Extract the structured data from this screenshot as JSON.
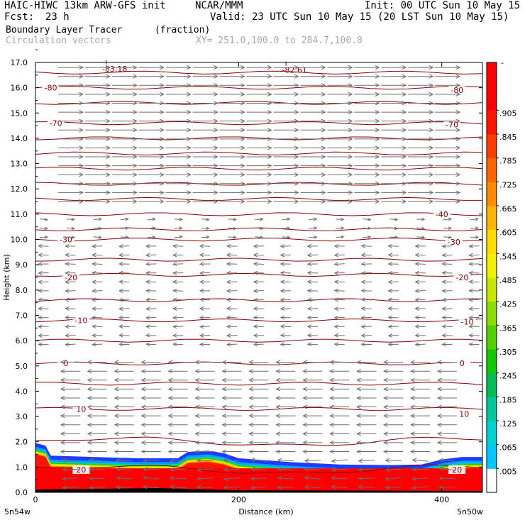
{
  "header": {
    "title": "HAIC-HIWC 13km ARW-GFS init",
    "org": "NCAR/MMM",
    "init": "Init: 00 UTC Sun 10 May 15",
    "fcst_label": "Fcst:",
    "fcst_value": "23 h",
    "valid": "Valid: 23 UTC Sun 10 May 15 (20 LST Sun 10 May 15)",
    "field_name": "Boundary Layer Tracer",
    "field_units": "(fraction)",
    "vector_name": "Circulation vectors",
    "xy_range": "XY= 251.0,100.0 to 284.7,100.0"
  },
  "chart_data": {
    "type": "heatmap",
    "title": "Boundary Layer Tracer (fraction)",
    "xlabel": "Distance (km)",
    "ylabel": "Height (km)",
    "xlim": [
      0,
      440
    ],
    "ylim": [
      0,
      17
    ],
    "x_ticks": [
      "0",
      "200",
      "400"
    ],
    "x_end_labels": [
      "5n54w",
      "5n50w"
    ],
    "y_ticks": [
      "0.0",
      "1.0",
      "2.0",
      "3.0",
      "4.0",
      "5.0",
      "6.0",
      "7.0",
      "8.0",
      "9.0",
      "10.0",
      "11.0",
      "12.0",
      "13.0",
      "14.0",
      "15.0",
      "16.0",
      "17.0"
    ],
    "colorbar": {
      "labels": [
        ".005",
        ".065",
        ".125",
        ".185",
        ".245",
        ".305",
        ".365",
        ".425",
        ".485",
        ".545",
        ".605",
        ".665",
        ".725",
        ".785",
        ".845",
        ".905"
      ],
      "top_label": "-",
      "colors": [
        "#ffffff",
        "#00c8ff",
        "#00d2d2",
        "#00c89b",
        "#00be55",
        "#14c800",
        "#50d200",
        "#8cdc00",
        "#c8e600",
        "#f0f000",
        "#ffdc00",
        "#ffb400",
        "#ff8c00",
        "#ff6400",
        "#ff3c00",
        "#ff1400",
        "#ff0000",
        "#ff0000"
      ]
    },
    "tracer_top_km": [
      [
        0,
        1.95
      ],
      [
        10,
        1.85
      ],
      [
        15,
        1.45
      ],
      [
        40,
        1.42
      ],
      [
        100,
        1.35
      ],
      [
        140,
        1.35
      ],
      [
        150,
        1.6
      ],
      [
        170,
        1.65
      ],
      [
        185,
        1.55
      ],
      [
        200,
        1.35
      ],
      [
        250,
        1.2
      ],
      [
        300,
        1.1
      ],
      [
        350,
        1.08
      ],
      [
        380,
        1.1
      ],
      [
        400,
        1.3
      ],
      [
        420,
        1.4
      ],
      [
        440,
        1.4
      ]
    ],
    "tracer_core_km": 0.95,
    "temperature_contours": [
      {
        "value": "-80",
        "height_km": 16.0
      },
      {
        "value": "-70",
        "height_km": 14.6
      },
      {
        "value": "-40",
        "height_km": 11.0
      },
      {
        "value": "-30",
        "height_km": 10.0
      },
      {
        "value": "-20",
        "height_km": 8.6
      },
      {
        "value": "-10",
        "height_km": 6.8
      },
      {
        "value": "0",
        "height_km": 5.1
      },
      {
        "value": "10",
        "height_km": 3.3
      },
      {
        "value": "20",
        "height_km": 0.9
      }
    ],
    "unlabeled_contour_heights_km": [
      16.6,
      15.4,
      14.0,
      13.4,
      12.8,
      12.2,
      11.6,
      10.4,
      9.2,
      7.6,
      6.0,
      4.3,
      2.0
    ],
    "contour_labels": [
      {
        "value": "-80",
        "x_km": 15,
        "y_km": 16.0
      },
      {
        "value": "-80",
        "x_km": 415,
        "y_km": 15.9
      },
      {
        "value": "-70",
        "x_km": 20,
        "y_km": 14.6
      },
      {
        "value": "-70",
        "x_km": 410,
        "y_km": 14.55
      },
      {
        "value": "-40",
        "x_km": 400,
        "y_km": 11.0
      },
      {
        "value": "-30",
        "x_km": 30,
        "y_km": 10.0
      },
      {
        "value": "-30",
        "x_km": 412,
        "y_km": 9.9
      },
      {
        "value": "-20",
        "x_km": 35,
        "y_km": 8.5
      },
      {
        "value": "-20",
        "x_km": 420,
        "y_km": 8.5
      },
      {
        "value": "-10",
        "x_km": 45,
        "y_km": 6.8
      },
      {
        "value": "-10",
        "x_km": 425,
        "y_km": 6.75
      },
      {
        "value": "0",
        "x_km": 30,
        "y_km": 5.1
      },
      {
        "value": "0",
        "x_km": 420,
        "y_km": 5.1
      },
      {
        "value": "10",
        "x_km": 45,
        "y_km": 3.3
      },
      {
        "value": "10",
        "x_km": 422,
        "y_km": 3.1
      },
      {
        "value": "20",
        "x_km": 45,
        "y_km": 0.9
      },
      {
        "value": "20",
        "x_km": 415,
        "y_km": 0.9
      }
    ],
    "extrema_labels": [
      {
        "text": "-83.18",
        "x_km": 78,
        "y_km": 16.75
      },
      {
        "text": "-82.61",
        "x_km": 255,
        "y_km": 16.7
      }
    ],
    "vectors": {
      "description": "strong eastward upper flow above 11 km, weak westward flow 5.5-10 km, westward low-level flow with vertical component near surface",
      "layers": [
        {
          "y_from_km": 11.2,
          "y_to_km": 17.0,
          "u": 1.0,
          "w": 0.0
        },
        {
          "y_from_km": 10.0,
          "y_to_km": 11.0,
          "u": 0.25,
          "w": 0.1
        },
        {
          "y_from_km": 5.5,
          "y_to_km": 9.8,
          "u": -0.35,
          "w": 0.05
        },
        {
          "y_from_km": 1.5,
          "y_to_km": 5.3,
          "u": -0.75,
          "w": 0.0
        },
        {
          "y_from_km": 0.0,
          "y_to_km": 1.4,
          "u": -0.6,
          "w": -0.15
        }
      ]
    }
  }
}
